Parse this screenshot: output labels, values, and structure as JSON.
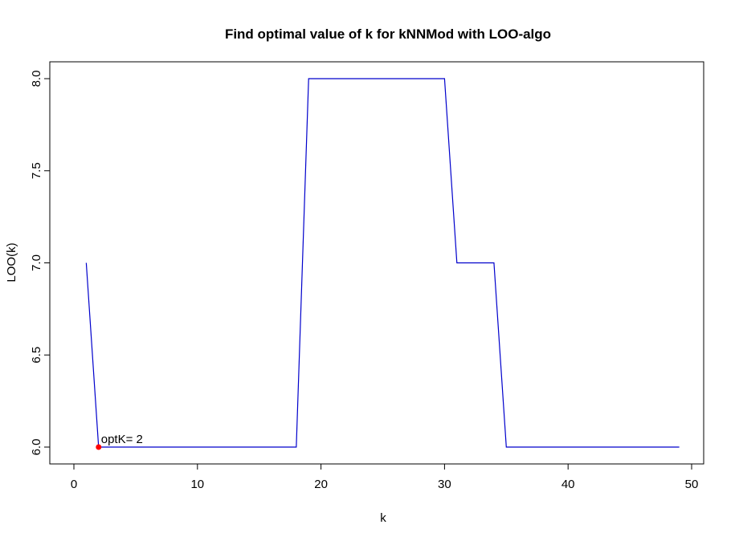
{
  "chart_data": {
    "type": "line",
    "title": "Find optimal value of k for kNNMod with LOO-algo",
    "xlabel": "k",
    "ylabel": "LOO(k)",
    "xlim": [
      0,
      50
    ],
    "ylim": [
      6.0,
      8.0
    ],
    "x_ticks": [
      0,
      10,
      20,
      30,
      40,
      50
    ],
    "x_tick_labels": [
      "0",
      "10",
      "20",
      "30",
      "40",
      "50"
    ],
    "y_ticks": [
      6.0,
      6.5,
      7.0,
      7.5,
      8.0
    ],
    "y_tick_labels": [
      "6.0",
      "6.5",
      "7.0",
      "7.5",
      "8.0"
    ],
    "grid": false,
    "series": [
      {
        "color": "#0000cc",
        "x": [
          1,
          2,
          3,
          4,
          5,
          6,
          7,
          8,
          9,
          10,
          11,
          12,
          13,
          14,
          15,
          16,
          17,
          18,
          19,
          20,
          21,
          22,
          23,
          24,
          25,
          26,
          27,
          28,
          29,
          30,
          31,
          32,
          33,
          34,
          35,
          36,
          37,
          38,
          39,
          40,
          41,
          42,
          43,
          44,
          45,
          46,
          47,
          48,
          49
        ],
        "values": [
          7,
          6,
          6,
          6,
          6,
          6,
          6,
          6,
          6,
          6,
          6,
          6,
          6,
          6,
          6,
          6,
          6,
          6,
          8,
          8,
          8,
          8,
          8,
          8,
          8,
          8,
          8,
          8,
          8,
          8,
          7,
          7,
          7,
          7,
          6,
          6,
          6,
          6,
          6,
          6,
          6,
          6,
          6,
          6,
          6,
          6,
          6,
          6,
          6
        ]
      }
    ],
    "annotations": [
      {
        "text": "optK= 2",
        "x": 2,
        "y": 6,
        "point_color": "#ff0000"
      }
    ]
  }
}
